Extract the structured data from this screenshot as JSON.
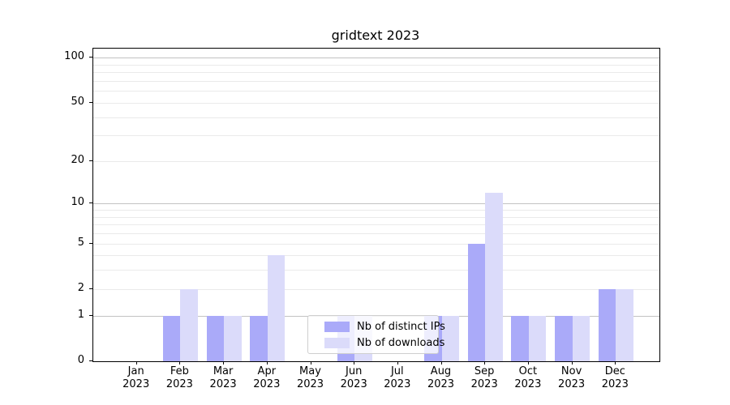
{
  "chart_data": {
    "type": "bar",
    "title": "gridtext 2023",
    "categories": [
      "Jan 2023",
      "Feb 2023",
      "Mar 2023",
      "Apr 2023",
      "May 2023",
      "Jun 2023",
      "Jul 2023",
      "Aug 2023",
      "Sep 2023",
      "Oct 2023",
      "Nov 2023",
      "Dec 2023"
    ],
    "series": [
      {
        "name": "Nb of distinct IPs",
        "color": "#aaaaf9",
        "values": [
          0,
          1,
          1,
          1,
          0,
          1,
          0,
          1,
          5,
          1,
          1,
          2
        ]
      },
      {
        "name": "Nb of downloads",
        "color": "#dbdbfa",
        "values": [
          0,
          2,
          1,
          4,
          0,
          1,
          0,
          1,
          12,
          1,
          1,
          2
        ]
      }
    ],
    "xlabel": "",
    "ylabel": "",
    "yscale": "log1p",
    "ylim": [
      0,
      115
    ],
    "yticks": [
      0,
      1,
      2,
      5,
      10,
      20,
      50,
      100
    ],
    "grid": {
      "major_ticks": [
        1,
        10,
        100
      ],
      "minor_decades": [
        1,
        10
      ],
      "major_color": "#c2c2c2",
      "minor_color": "#eaeaea",
      "enabled": true
    },
    "legend": {
      "location": "lower center inside plot"
    }
  }
}
